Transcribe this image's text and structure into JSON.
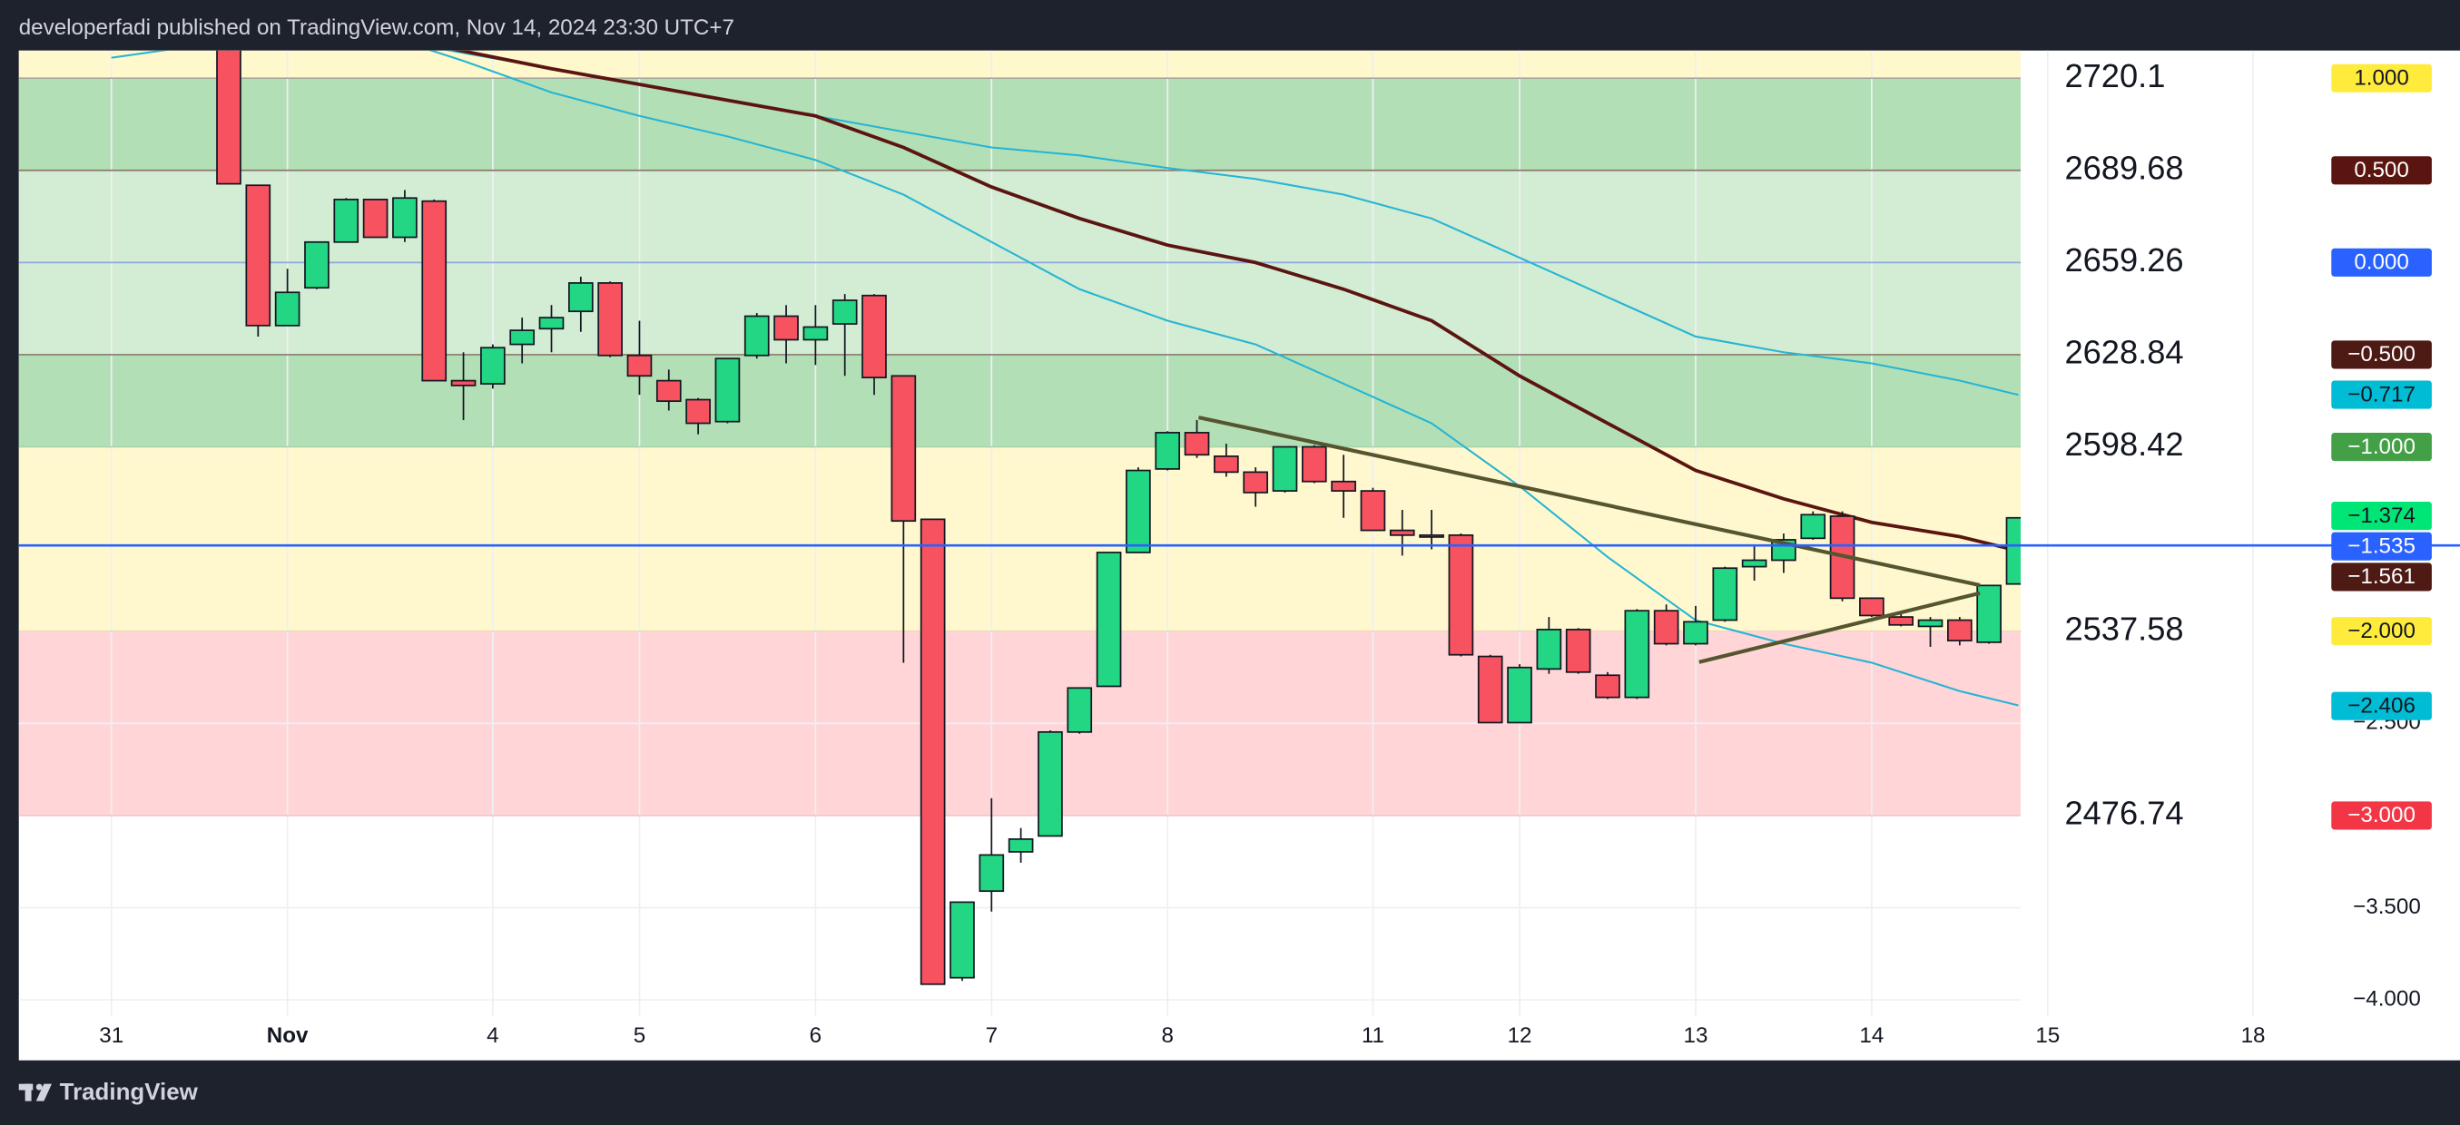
{
  "header": {
    "text": "developerfadi published on TradingView.com, Nov 14, 2024 23:30 UTC+7"
  },
  "footer": {
    "brand": "TradingView"
  },
  "chart_data": {
    "type": "candlestick",
    "categories": [
      "31",
      null,
      null,
      null,
      null,
      null,
      "Nov",
      null,
      null,
      null,
      null,
      null,
      null,
      "4",
      null,
      null,
      null,
      null,
      "5",
      null,
      null,
      null,
      null,
      null,
      "6",
      null,
      null,
      null,
      null,
      null,
      "7",
      null,
      null,
      null,
      null,
      null,
      "8",
      null,
      null,
      null,
      null,
      null,
      null,
      "11",
      null,
      null,
      null,
      null,
      "12",
      null,
      null,
      null,
      null,
      null,
      "13",
      null,
      null,
      null,
      null,
      null,
      "14",
      null,
      null,
      null,
      null,
      null,
      "15",
      null,
      null,
      null,
      null,
      null,
      null,
      "18"
    ],
    "open": [
      null,
      null,
      null,
      null,
      1.222,
      0.419,
      -0.342,
      -0.137,
      0.111,
      0.342,
      0.137,
      0.333,
      -0.641,
      -0.658,
      -0.444,
      -0.359,
      -0.265,
      -0.111,
      -0.504,
      -0.641,
      -0.744,
      -0.863,
      -0.504,
      -0.291,
      -0.419,
      -0.333,
      -0.179,
      -0.615,
      -1.393,
      -3.88,
      -3.41,
      -3.197,
      -3.111,
      -2.547,
      -2.299,
      -1.573,
      -1.12,
      -0.923,
      -1.051,
      -1.137,
      -1.239,
      -1,
      -1.188,
      -1.239,
      -1.453,
      -1.479,
      -1.479,
      -2.137,
      -2.496,
      -2.205,
      -1.991,
      -2.239,
      -2.359,
      -1.889,
      -2.068,
      -1.94,
      -1.65,
      -1.615,
      -1.496,
      -1.376,
      -1.821,
      -1.923,
      -1.974,
      -1.94,
      -2.06,
      -1.744,
      null,
      null,
      null,
      null,
      null,
      null,
      null,
      null
    ],
    "high": [
      null,
      null,
      null,
      null,
      1.265,
      0.419,
      -0.034,
      0.111,
      0.35,
      0.342,
      0.393,
      0.342,
      -0.487,
      -0.444,
      -0.299,
      -0.231,
      -0.077,
      -0.103,
      -0.316,
      -0.581,
      -0.735,
      -0.521,
      -0.274,
      -0.231,
      -0.231,
      -0.171,
      -0.171,
      -0.615,
      -1.393,
      -3.47,
      -2.906,
      -3.068,
      -2.538,
      -2.308,
      -1.573,
      -1.111,
      -0.915,
      -0.855,
      -0.983,
      -1.111,
      -1,
      -0.991,
      -1.043,
      -1.222,
      -1.342,
      -1.342,
      -1.47,
      -2.128,
      -2.179,
      -1.923,
      -1.983,
      -2.222,
      -1.88,
      -1.855,
      -1.863,
      -1.65,
      -1.538,
      -1.47,
      -1.35,
      -1.35,
      -1.821,
      -1.897,
      -1.923,
      -1.923,
      -1.752,
      -1.385,
      null,
      null,
      null,
      null,
      null,
      null,
      null,
      null
    ],
    "low": [
      null,
      null,
      null,
      null,
      0.427,
      -0.402,
      -0.342,
      -0.145,
      0.111,
      0.137,
      0.111,
      -0.641,
      -0.855,
      -0.684,
      -0.547,
      -0.487,
      -0.376,
      -0.513,
      -0.718,
      -0.803,
      -0.932,
      -0.872,
      -0.521,
      -0.547,
      -0.556,
      -0.615,
      -0.718,
      -2.171,
      -3.915,
      -3.897,
      -3.521,
      -3.256,
      -3.111,
      -2.556,
      -2.299,
      -1.573,
      -1.128,
      -1.06,
      -1.162,
      -1.325,
      -1.248,
      -1.197,
      -1.385,
      -1.453,
      -1.59,
      -1.556,
      -2.137,
      -2.496,
      -2.496,
      -2.231,
      -2.231,
      -2.368,
      -2.368,
      -2.077,
      -2.077,
      -1.949,
      -1.726,
      -1.684,
      -1.504,
      -1.838,
      -1.923,
      -1.974,
      -2.085,
      -2.077,
      -2.068,
      -1.744,
      null,
      null,
      null,
      null,
      null,
      null,
      null,
      null
    ],
    "close": [
      null,
      null,
      null,
      null,
      0.427,
      -0.342,
      -0.162,
      0.111,
      0.342,
      0.137,
      0.35,
      -0.641,
      -0.667,
      -0.462,
      -0.368,
      -0.299,
      -0.111,
      -0.504,
      -0.615,
      -0.752,
      -0.872,
      -0.521,
      -0.291,
      -0.419,
      -0.35,
      -0.205,
      -0.624,
      -1.402,
      -3.915,
      -3.47,
      -3.214,
      -3.128,
      -2.547,
      -2.308,
      -1.573,
      -1.128,
      -0.923,
      -1.043,
      -1.137,
      -1.248,
      -1,
      -1.188,
      -1.239,
      -1.453,
      -1.479,
      -1.487,
      -2.128,
      -2.496,
      -2.197,
      -1.991,
      -2.222,
      -2.359,
      -1.889,
      -2.068,
      -1.949,
      -1.658,
      -1.615,
      -1.504,
      -1.368,
      -1.821,
      -1.915,
      -1.966,
      -1.94,
      -2.051,
      -1.752,
      -1.385,
      null,
      null,
      null,
      null,
      null,
      null,
      null,
      null
    ],
    "up_color": "#22d683",
    "down_color": "#f7525f",
    "border_color": "#131722",
    "ylim": [
      -4.09,
      1.15
    ],
    "yticks": [
      {
        "value": -2.5,
        "label": "−2.500"
      },
      {
        "value": -3.5,
        "label": "−3.500"
      },
      {
        "value": -4,
        "label": "−4.000"
      }
    ],
    "grid": true,
    "fill_above": "#fff8cc",
    "fib_levels": [
      {
        "value": 1,
        "label": "1.000",
        "price": 2720.1,
        "tag_color": "#ffeb3b",
        "text_color": "#131722",
        "line_color": "#a8a89c",
        "fill": "#b3dfb6"
      },
      {
        "value": 0.5,
        "label": "0.500",
        "price": 2689.68,
        "tag_color": "#5b1510",
        "text_color": "#ffffff",
        "line_color": "#8c7a6b",
        "fill": "#d3ecd4"
      },
      {
        "value": 0,
        "label": "0.000",
        "price": 2659.26,
        "tag_color": "#2962ff",
        "text_color": "#ffffff",
        "line_color": "#90a8e0",
        "fill": "#d3ecd4"
      },
      {
        "value": -0.5,
        "label": "−0.500",
        "price": 2628.84,
        "tag_color": "#4e1a14",
        "text_color": "#ffffff",
        "line_color": "#8c7a6b",
        "fill": "#b3dfb6"
      },
      {
        "value": -1,
        "label": "−1.000",
        "price": 2598.42,
        "tag_color": "#43a047",
        "text_color": "#ffffff",
        "line_color": "#a9d8ac",
        "fill": "#fff8cf"
      },
      {
        "value": -2,
        "label": "−2.000",
        "price": 2537.58,
        "tag_color": "#ffeb3b",
        "text_color": "#131722",
        "line_color": "#f2d6c4",
        "fill": "#ffd5d8"
      },
      {
        "value": -3,
        "label": "−3.000",
        "price": 2476.74,
        "tag_color": "#f23645",
        "text_color": "#ffffff",
        "line_color": "#f0c8c8"
      }
    ],
    "moving_averages": [
      {
        "color": "#26b5d4",
        "x": [
          0,
          3,
          6,
          10,
          12,
          15,
          18,
          21,
          24,
          27,
          30,
          33,
          36,
          39,
          42,
          45,
          48,
          51,
          54,
          57,
          60,
          63,
          65
        ],
        "values": [
          1.111,
          1.179,
          1.222,
          1.197,
          1.094,
          0.923,
          0.795,
          0.684,
          0.556,
          0.368,
          0.111,
          -0.145,
          -0.316,
          -0.444,
          -0.658,
          -0.872,
          -1.214,
          -1.598,
          -1.94,
          -2.068,
          -2.171,
          -2.325,
          -2.402
        ]
      },
      {
        "color": "#26b5d4",
        "x": [
          0,
          6,
          12,
          15,
          18,
          21,
          24,
          27,
          30,
          33,
          36,
          39,
          42,
          45,
          48,
          51,
          54,
          57,
          60,
          63,
          65
        ],
        "values": [
          1.265,
          1.308,
          1.137,
          1.051,
          0.966,
          0.88,
          0.795,
          0.709,
          0.624,
          0.581,
          0.513,
          0.453,
          0.368,
          0.239,
          0.026,
          -0.188,
          -0.402,
          -0.487,
          -0.547,
          -0.641,
          -0.718
        ]
      },
      {
        "color": "#5b1510",
        "x": [
          0,
          6,
          11,
          15,
          18,
          21,
          24,
          27,
          30,
          33,
          36,
          39,
          42,
          45,
          48,
          51,
          54,
          57,
          60,
          63,
          65
        ],
        "values": [
          1.35,
          1.308,
          1.179,
          1.051,
          0.966,
          0.88,
          0.795,
          0.624,
          0.41,
          0.239,
          0.094,
          0,
          -0.145,
          -0.316,
          -0.615,
          -0.872,
          -1.128,
          -1.282,
          -1.41,
          -1.487,
          -1.564
        ]
      }
    ],
    "price_tags": [
      {
        "value": -0.717,
        "label": "−0.717",
        "color": "#00bcd4",
        "text_color": "#131722"
      },
      {
        "value": -1.374,
        "label": "−1.374",
        "color": "#00e676",
        "text_color": "#131722"
      },
      {
        "value": -1.561,
        "label": "−1.561",
        "color": "#4e1a14",
        "text_color": "#ffffff"
      },
      {
        "value": -2.406,
        "label": "−2.406",
        "color": "#00bcd4",
        "text_color": "#131722"
      }
    ],
    "hline": {
      "value": -1.535,
      "label": "−1.535",
      "color": "#2962ff",
      "text_color": "#ffffff"
    }
  }
}
